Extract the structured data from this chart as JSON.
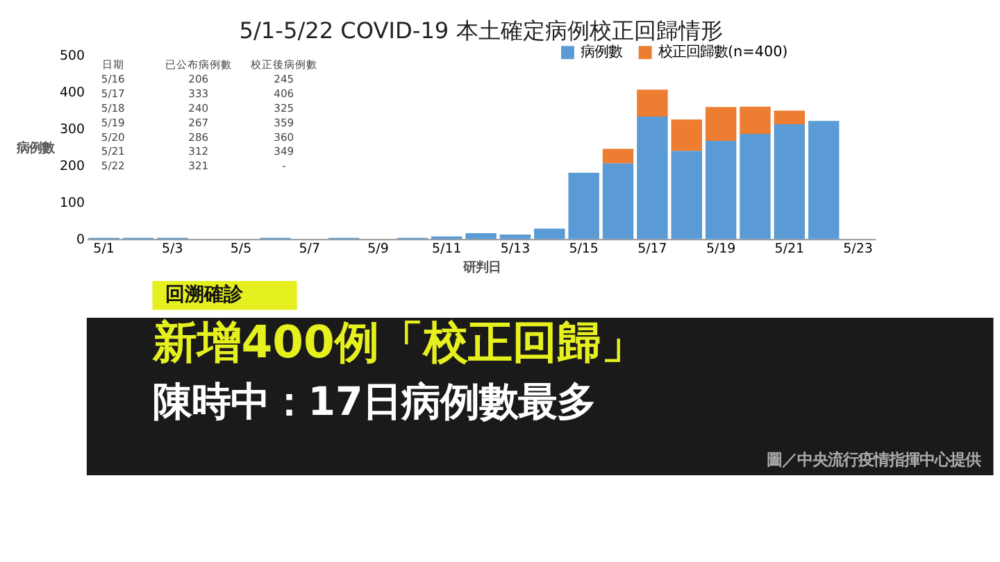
{
  "chart_data": {
    "type": "bar",
    "title": "5/1-5/22 COVID-19 本土確定病例校正回歸情形",
    "xlabel": "研判日",
    "ylabel": "病例數",
    "categories": [
      "5/1",
      null,
      "5/3",
      null,
      "5/5",
      null,
      "5/7",
      null,
      "5/9",
      null,
      "5/11",
      null,
      "5/13",
      null,
      "5/15",
      null,
      "5/17",
      null,
      "5/19",
      null,
      "5/21",
      null,
      "5/23"
    ],
    "stacked": true,
    "series": [
      {
        "name": "病例數",
        "color": "#5b9bd5",
        "values": [
          3,
          3,
          3,
          0,
          0,
          3,
          0,
          3,
          0,
          3,
          7,
          16,
          12,
          28,
          180,
          206,
          333,
          240,
          267,
          286,
          312,
          321,
          null
        ]
      },
      {
        "name": "校正回歸數(n=400)",
        "color": "#ed7d31",
        "values": [
          null,
          null,
          null,
          null,
          null,
          null,
          null,
          null,
          null,
          null,
          null,
          null,
          null,
          null,
          null,
          39,
          73,
          85,
          92,
          74,
          37,
          null,
          null
        ]
      }
    ],
    "ylim": [
      0,
      500
    ],
    "yticks": [
      0,
      100,
      200,
      300,
      400,
      500
    ],
    "grid": false,
    "legend": "top right",
    "annotations": [
      "日期 已公布病例數 校正後病例數",
      "5/16 206 245",
      "5/17 333 406",
      "5/18 240 325",
      "5/19 267 359",
      "5/20 286 360",
      "5/21 312 349",
      "5/22 321 -",
      "回溯確診",
      "新增400例「校正回歸」",
      "陳時中：17日病例數最多",
      "圖／中央流行疫情指揮中心提供"
    ]
  }
}
